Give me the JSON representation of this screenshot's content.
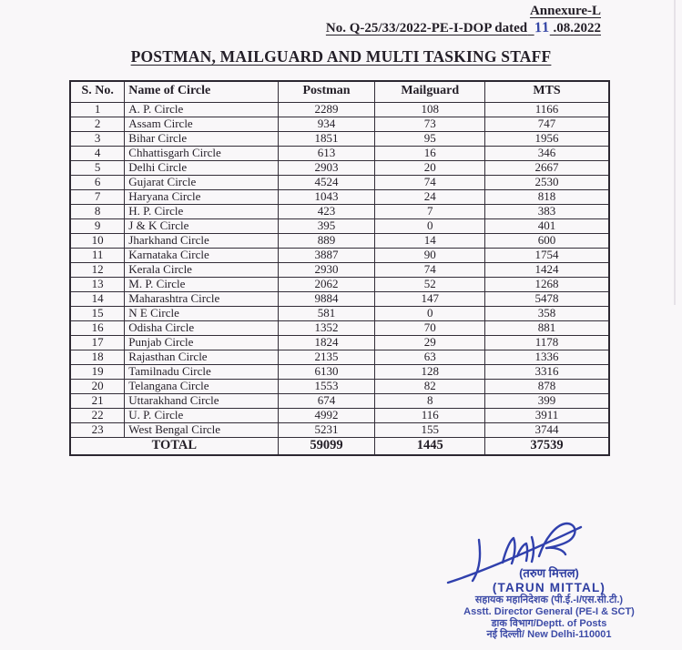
{
  "header": {
    "annexure": "Annexure-L",
    "ref_prefix": "No. Q-25/33/2022-PE-I-DOP dated",
    "handwritten_day": "11",
    "date_suffix": ".08.2022",
    "title": "POSTMAN, MAILGUARD AND MULTI TASKING STAFF"
  },
  "table": {
    "columns": [
      "S. No.",
      "Name of Circle",
      "Postman",
      "Mailguard",
      "MTS"
    ],
    "rows": [
      [
        "1",
        "A. P. Circle",
        "2289",
        "108",
        "1166"
      ],
      [
        "2",
        "Assam Circle",
        "934",
        "73",
        "747"
      ],
      [
        "3",
        "Bihar Circle",
        "1851",
        "95",
        "1956"
      ],
      [
        "4",
        "Chhattisgarh Circle",
        "613",
        "16",
        "346"
      ],
      [
        "5",
        "Delhi Circle",
        "2903",
        "20",
        "2667"
      ],
      [
        "6",
        "Gujarat Circle",
        "4524",
        "74",
        "2530"
      ],
      [
        "7",
        "Haryana Circle",
        "1043",
        "24",
        "818"
      ],
      [
        "8",
        "H. P. Circle",
        "423",
        "7",
        "383"
      ],
      [
        "9",
        "J & K Circle",
        "395",
        "0",
        "401"
      ],
      [
        "10",
        "Jharkhand Circle",
        "889",
        "14",
        "600"
      ],
      [
        "11",
        "Karnataka Circle",
        "3887",
        "90",
        "1754"
      ],
      [
        "12",
        "Kerala Circle",
        "2930",
        "74",
        "1424"
      ],
      [
        "13",
        "M. P. Circle",
        "2062",
        "52",
        "1268"
      ],
      [
        "14",
        "Maharashtra Circle",
        "9884",
        "147",
        "5478"
      ],
      [
        "15",
        "N E Circle",
        "581",
        "0",
        "358"
      ],
      [
        "16",
        "Odisha Circle",
        "1352",
        "70",
        "881"
      ],
      [
        "17",
        "Punjab Circle",
        "1824",
        "29",
        "1178"
      ],
      [
        "18",
        "Rajasthan Circle",
        "2135",
        "63",
        "1336"
      ],
      [
        "19",
        "Tamilnadu Circle",
        "6130",
        "128",
        "3316"
      ],
      [
        "20",
        "Telangana Circle",
        "1553",
        "82",
        "878"
      ],
      [
        "21",
        "Uttarakhand Circle",
        "674",
        "8",
        "399"
      ],
      [
        "22",
        "U. P. Circle",
        "4992",
        "116",
        "3911"
      ],
      [
        "23",
        "West Bengal Circle",
        "5231",
        "155",
        "3744"
      ]
    ],
    "total": {
      "label": "TOTAL",
      "postman": "59099",
      "mailguard": "1445",
      "mts": "37539"
    }
  },
  "signature": {
    "name_hindi": "(तरुण मित्तल)",
    "name_english": "(TARUN MITTAL)",
    "designation_hindi": "सहायक महानिदेशक (पी.ई.-I/एस.सी.टी.)",
    "designation_english": "Asstt. Director General (PE-I & SCT)",
    "department": "डाक विभाग/Deptt. of Posts",
    "address": "नई दिल्ली/ New Delhi-110001"
  },
  "colors": {
    "paper": "#f9f7f9",
    "ink_black": "#241f28",
    "ink_blue": "#2e3da1",
    "table_border": "#332d38"
  }
}
